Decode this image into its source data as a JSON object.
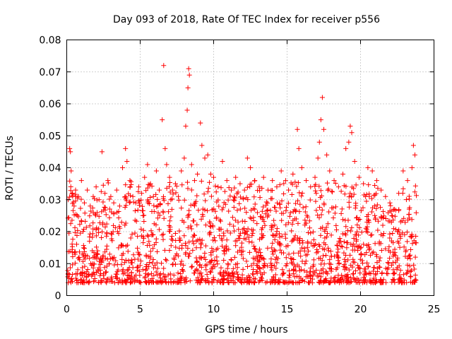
{
  "chart_data": {
    "type": "scatter",
    "title": "Day 093 of 2018, Rate Of TEC Index for receiver p556",
    "xlabel": "GPS time / hours",
    "ylabel": "ROTI / TECUs",
    "xlim": [
      0,
      25
    ],
    "ylim": [
      0,
      0.08
    ],
    "x_ticks": [
      0,
      5,
      10,
      15,
      20,
      25
    ],
    "x_tick_labels": [
      "0",
      "5",
      "10",
      "15",
      "20",
      "25"
    ],
    "y_ticks": [
      0,
      0.01,
      0.02,
      0.03,
      0.04,
      0.05,
      0.06,
      0.07,
      0.08
    ],
    "y_tick_labels": [
      "0",
      "0.01",
      "0.02",
      "0.03",
      "0.04",
      "0.05",
      "0.06",
      "0.07",
      "0.08"
    ],
    "grid": true,
    "marker": "+",
    "color": "#ff0000",
    "series": [
      {
        "name": "ROTI",
        "points": [
          [
            0.1,
            0.03
          ],
          [
            0.2,
            0.046
          ],
          [
            0.25,
            0.045
          ],
          [
            0.3,
            0.039
          ],
          [
            0.4,
            0.032
          ],
          [
            0.5,
            0.028
          ],
          [
            0.6,
            0.033
          ],
          [
            0.8,
            0.031
          ],
          [
            1.0,
            0.036
          ],
          [
            1.2,
            0.029
          ],
          [
            1.4,
            0.033
          ],
          [
            1.6,
            0.028
          ],
          [
            1.8,
            0.031
          ],
          [
            2.0,
            0.034
          ],
          [
            2.2,
            0.03
          ],
          [
            2.4,
            0.045
          ],
          [
            2.6,
            0.032
          ],
          [
            2.8,
            0.036
          ],
          [
            3.0,
            0.031
          ],
          [
            3.2,
            0.029
          ],
          [
            3.4,
            0.033
          ],
          [
            3.6,
            0.028
          ],
          [
            3.8,
            0.04
          ],
          [
            4.0,
            0.046
          ],
          [
            4.1,
            0.042
          ],
          [
            4.3,
            0.036
          ],
          [
            4.5,
            0.031
          ],
          [
            4.7,
            0.029
          ],
          [
            4.9,
            0.034
          ],
          [
            5.1,
            0.032
          ],
          [
            5.3,
            0.037
          ],
          [
            5.5,
            0.041
          ],
          [
            5.7,
            0.035
          ],
          [
            5.9,
            0.031
          ],
          [
            6.1,
            0.039
          ],
          [
            6.3,
            0.033
          ],
          [
            6.5,
            0.055
          ],
          [
            6.6,
            0.072
          ],
          [
            6.7,
            0.046
          ],
          [
            6.8,
            0.041
          ],
          [
            7.0,
            0.037
          ],
          [
            7.2,
            0.033
          ],
          [
            7.4,
            0.035
          ],
          [
            7.6,
            0.031
          ],
          [
            7.8,
            0.039
          ],
          [
            8.0,
            0.043
          ],
          [
            8.1,
            0.053
          ],
          [
            8.2,
            0.058
          ],
          [
            8.25,
            0.065
          ],
          [
            8.3,
            0.071
          ],
          [
            8.35,
            0.069
          ],
          [
            8.5,
            0.041
          ],
          [
            8.7,
            0.036
          ],
          [
            8.9,
            0.038
          ],
          [
            9.1,
            0.054
          ],
          [
            9.2,
            0.047
          ],
          [
            9.4,
            0.043
          ],
          [
            9.6,
            0.044
          ],
          [
            9.8,
            0.038
          ],
          [
            10.0,
            0.037
          ],
          [
            10.3,
            0.034
          ],
          [
            10.6,
            0.042
          ],
          [
            10.9,
            0.036
          ],
          [
            11.2,
            0.033
          ],
          [
            11.5,
            0.037
          ],
          [
            11.8,
            0.035
          ],
          [
            12.1,
            0.033
          ],
          [
            12.3,
            0.043
          ],
          [
            12.5,
            0.04
          ],
          [
            12.8,
            0.036
          ],
          [
            13.1,
            0.034
          ],
          [
            13.4,
            0.037
          ],
          [
            13.7,
            0.033
          ],
          [
            14.0,
            0.036
          ],
          [
            14.3,
            0.034
          ],
          [
            14.6,
            0.039
          ],
          [
            14.9,
            0.036
          ],
          [
            15.1,
            0.033
          ],
          [
            15.4,
            0.038
          ],
          [
            15.7,
            0.052
          ],
          [
            15.8,
            0.046
          ],
          [
            16.0,
            0.04
          ],
          [
            16.3,
            0.036
          ],
          [
            16.6,
            0.034
          ],
          [
            16.9,
            0.037
          ],
          [
            17.1,
            0.043
          ],
          [
            17.2,
            0.048
          ],
          [
            17.3,
            0.055
          ],
          [
            17.4,
            0.062
          ],
          [
            17.5,
            0.052
          ],
          [
            17.7,
            0.044
          ],
          [
            17.9,
            0.039
          ],
          [
            18.2,
            0.036
          ],
          [
            18.5,
            0.034
          ],
          [
            18.8,
            0.038
          ],
          [
            19.0,
            0.046
          ],
          [
            19.2,
            0.048
          ],
          [
            19.3,
            0.053
          ],
          [
            19.4,
            0.051
          ],
          [
            19.6,
            0.042
          ],
          [
            19.9,
            0.037
          ],
          [
            20.2,
            0.035
          ],
          [
            20.5,
            0.04
          ],
          [
            20.8,
            0.039
          ],
          [
            21.1,
            0.036
          ],
          [
            21.4,
            0.033
          ],
          [
            21.7,
            0.031
          ],
          [
            22.0,
            0.029
          ],
          [
            22.3,
            0.027
          ],
          [
            22.6,
            0.032
          ],
          [
            22.9,
            0.039
          ],
          [
            23.2,
            0.036
          ],
          [
            23.5,
            0.04
          ],
          [
            23.6,
            0.047
          ],
          [
            23.7,
            0.044
          ]
        ]
      }
    ]
  }
}
